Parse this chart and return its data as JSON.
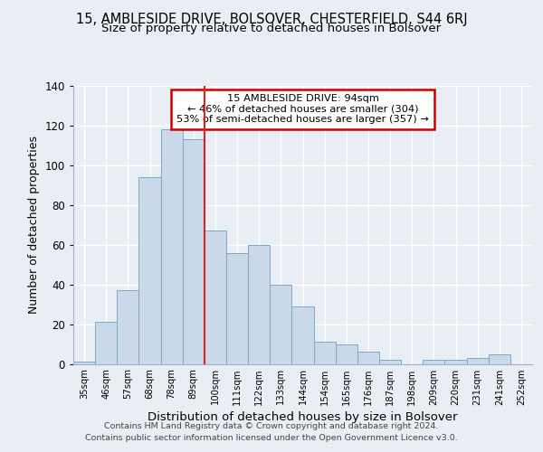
{
  "title": "15, AMBLESIDE DRIVE, BOLSOVER, CHESTERFIELD, S44 6RJ",
  "subtitle": "Size of property relative to detached houses in Bolsover",
  "xlabel": "Distribution of detached houses by size in Bolsover",
  "ylabel": "Number of detached properties",
  "categories": [
    "35sqm",
    "46sqm",
    "57sqm",
    "68sqm",
    "78sqm",
    "89sqm",
    "100sqm",
    "111sqm",
    "122sqm",
    "133sqm",
    "144sqm",
    "154sqm",
    "165sqm",
    "176sqm",
    "187sqm",
    "198sqm",
    "209sqm",
    "220sqm",
    "231sqm",
    "241sqm",
    "252sqm"
  ],
  "values": [
    1,
    21,
    37,
    94,
    118,
    113,
    67,
    56,
    60,
    40,
    29,
    11,
    10,
    6,
    2,
    0,
    2,
    2,
    3,
    5,
    0
  ],
  "bar_color": "#c9d9ea",
  "bar_edge_color": "#7aaac8",
  "property_line_index": 5,
  "annotation_title": "15 AMBLESIDE DRIVE: 94sqm",
  "annotation_line1": "← 46% of detached houses are smaller (304)",
  "annotation_line2": "53% of semi-detached houses are larger (357) →",
  "footer_line1": "Contains HM Land Registry data © Crown copyright and database right 2024.",
  "footer_line2": "Contains public sector information licensed under the Open Government Licence v3.0.",
  "ylim": [
    0,
    140
  ],
  "background_color": "#e8eef4",
  "plot_background": "#e8eef4",
  "grid_color": "#ffffff",
  "property_line_color": "#dd2222",
  "annotation_box_color": "#cc0000",
  "title_fontsize": 10.5,
  "subtitle_fontsize": 9.5,
  "ylabel_fontsize": 9,
  "xlabel_fontsize": 9.5
}
